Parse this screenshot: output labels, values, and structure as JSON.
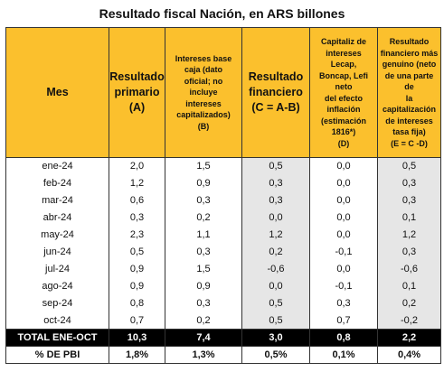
{
  "title": "Resultado fiscal Nación, en ARS billones",
  "headers": {
    "mes": "Mes",
    "primario": [
      "Resultado",
      "primario",
      "(A)"
    ],
    "intereses": [
      "Intereses base",
      "caja (dato",
      "oficial; no",
      "incluye",
      "intereses",
      "capitalizados)",
      "(B)"
    ],
    "financiero": [
      "Resultado",
      "financiero",
      "(C = A-B)"
    ],
    "capitaliz": [
      "Capitaliz de",
      "intereses Lecap,",
      "Boncap, Lefi neto",
      "del efecto",
      "inflación",
      "(estimación",
      "1816*)",
      "(D)"
    ],
    "genuino": [
      "Resultado",
      "financiero más",
      "genuino (neto",
      "de una parte de",
      "la",
      "capitalización",
      "de intereses",
      "tasa fija)",
      "(E = C -D)"
    ]
  },
  "rows": [
    {
      "mes": "ene-24",
      "a": "2,0",
      "b": "1,5",
      "c": "0,5",
      "d": "0,0",
      "e": "0,5"
    },
    {
      "mes": "feb-24",
      "a": "1,2",
      "b": "0,9",
      "c": "0,3",
      "d": "0,0",
      "e": "0,3"
    },
    {
      "mes": "mar-24",
      "a": "0,6",
      "b": "0,3",
      "c": "0,3",
      "d": "0,0",
      "e": "0,3"
    },
    {
      "mes": "abr-24",
      "a": "0,3",
      "b": "0,2",
      "c": "0,0",
      "d": "0,0",
      "e": "0,1"
    },
    {
      "mes": "may-24",
      "a": "2,3",
      "b": "1,1",
      "c": "1,2",
      "d": "0,0",
      "e": "1,2"
    },
    {
      "mes": "jun-24",
      "a": "0,5",
      "b": "0,3",
      "c": "0,2",
      "d": "-0,1",
      "e": "0,3"
    },
    {
      "mes": "jul-24",
      "a": "0,9",
      "b": "1,5",
      "c": "-0,6",
      "d": "0,0",
      "e": "-0,6"
    },
    {
      "mes": "ago-24",
      "a": "0,9",
      "b": "0,9",
      "c": "0,0",
      "d": "-0,1",
      "e": "0,1"
    },
    {
      "mes": "sep-24",
      "a": "0,8",
      "b": "0,3",
      "c": "0,5",
      "d": "0,3",
      "e": "0,2"
    },
    {
      "mes": "oct-24",
      "a": "0,7",
      "b": "0,2",
      "c": "0,5",
      "d": "0,7",
      "e": "-0,2"
    }
  ],
  "total": {
    "mes": "TOTAL ENE-OCT",
    "a": "10,3",
    "b": "7,4",
    "c": "3,0",
    "d": "0,8",
    "e": "2,2"
  },
  "pbi": {
    "mes": "% DE PBI",
    "a": "1,8%",
    "b": "1,3%",
    "c": "0,5%",
    "d": "0,1%",
    "e": "0,4%"
  },
  "colors": {
    "header_bg": "#fbc02d",
    "shade": "#e6e6e6",
    "total_bg": "#000000"
  }
}
